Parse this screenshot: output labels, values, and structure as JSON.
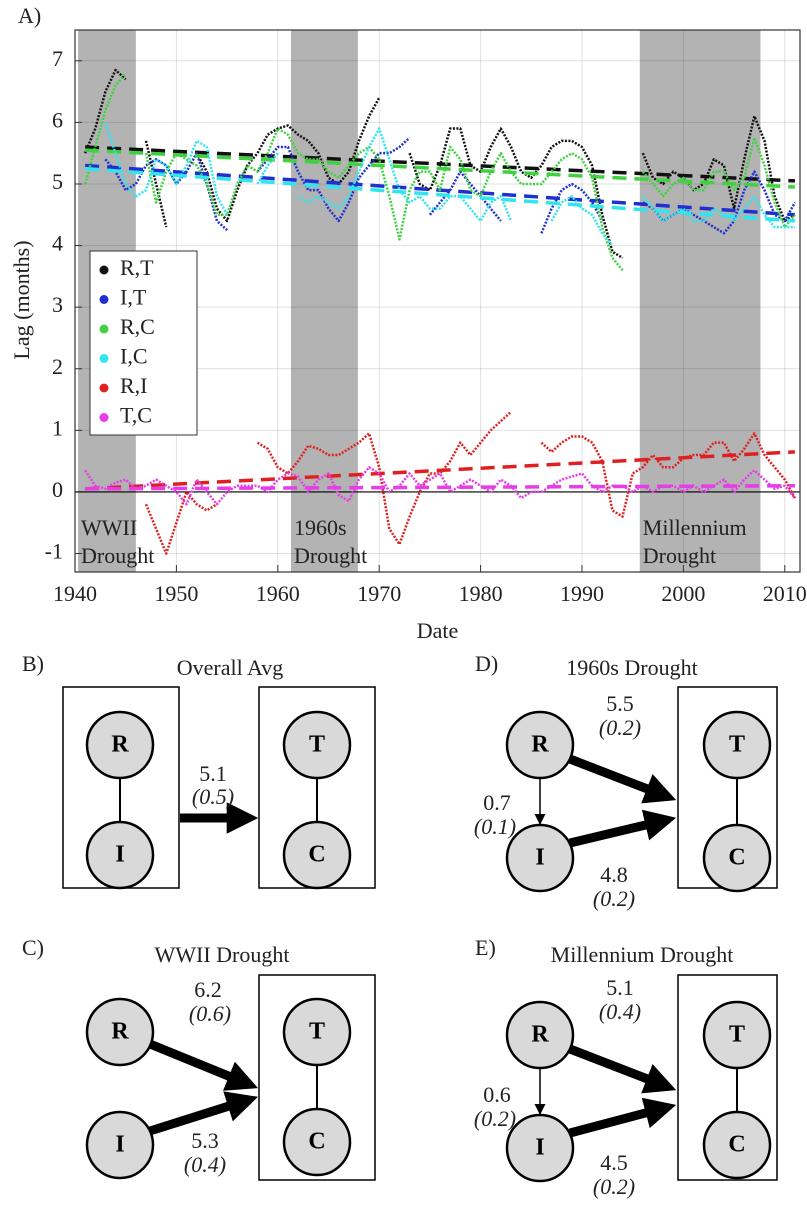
{
  "chart_data": {
    "type": "line",
    "panel_label": "A)",
    "x_label": "Date",
    "y_label": "Lag (months)",
    "xlim": [
      1940,
      2011.5
    ],
    "ylim": [
      -1.3,
      7.5
    ],
    "xticks": [
      1940,
      1950,
      1960,
      1970,
      1980,
      1990,
      2000,
      2010
    ],
    "yticks": [
      -1,
      0,
      1,
      2,
      3,
      4,
      5,
      6,
      7
    ],
    "grid": true,
    "legend": "left",
    "shaded_regions": [
      {
        "x": [
          1940.3,
          1946
        ],
        "label": [
          "WWII",
          "Drought"
        ]
      },
      {
        "x": [
          1961.3,
          1967.9
        ],
        "label": [
          "1960s",
          "Drought"
        ]
      },
      {
        "x": [
          1995.7,
          2007.6
        ],
        "label": [
          "Millennium",
          "Drought"
        ]
      }
    ],
    "x": [
      1941,
      1942,
      1943,
      1944,
      1945,
      1946,
      1947,
      1948,
      1949,
      1950,
      1951,
      1952,
      1953,
      1954,
      1955,
      1956,
      1957,
      1958,
      1959,
      1960,
      1961,
      1962,
      1963,
      1964,
      1965,
      1966,
      1967,
      1968,
      1969,
      1970,
      1971,
      1972,
      1973,
      1974,
      1975,
      1976,
      1977,
      1978,
      1979,
      1980,
      1981,
      1982,
      1983,
      1984,
      1985,
      1986,
      1987,
      1988,
      1989,
      1990,
      1991,
      1992,
      1993,
      1994,
      1995,
      1996,
      1997,
      1998,
      1999,
      2000,
      2001,
      2002,
      2003,
      2004,
      2005,
      2006,
      2007,
      2008,
      2009,
      2010,
      2011
    ],
    "trend_x": [
      1941,
      2011
    ],
    "series": [
      {
        "name": "R,T",
        "color": "#111111",
        "trend": [
          5.6,
          5.05
        ],
        "values": [
          5.5,
          5.9,
          6.5,
          6.85,
          6.7,
          null,
          5.7,
          5.0,
          4.3,
          null,
          null,
          5.5,
          5.2,
          4.6,
          4.4,
          4.9,
          5.3,
          5.5,
          5.8,
          5.9,
          5.95,
          5.8,
          5.7,
          5.5,
          5.1,
          5.0,
          5.2,
          5.7,
          6.1,
          6.4,
          null,
          null,
          5.5,
          5.0,
          4.9,
          5.3,
          5.9,
          5.9,
          5.3,
          5.2,
          5.6,
          5.9,
          5.6,
          5.2,
          5.1,
          5.3,
          5.6,
          5.7,
          5.7,
          5.6,
          5.3,
          4.5,
          3.9,
          3.8,
          null,
          5.5,
          5.1,
          5.0,
          5.2,
          5.1,
          4.9,
          5.0,
          5.4,
          5.3,
          4.6,
          5.4,
          6.1,
          5.7,
          4.8,
          4.4,
          4.5
        ]
      },
      {
        "name": "I,T",
        "color": "#1f2fd0",
        "trend": [
          5.3,
          4.5
        ],
        "values": [
          null,
          null,
          5.4,
          5.2,
          4.9,
          5.0,
          5.3,
          5.4,
          5.3,
          5.0,
          5.2,
          5.5,
          5.0,
          4.4,
          4.25,
          null,
          null,
          5.2,
          5.4,
          5.6,
          5.6,
          5.2,
          4.9,
          4.9,
          4.6,
          4.4,
          4.7,
          5.1,
          5.3,
          5.5,
          5.5,
          5.6,
          5.75,
          null,
          4.5,
          4.7,
          4.9,
          5.2,
          5.0,
          4.8,
          4.6,
          4.4,
          null,
          null,
          null,
          4.2,
          4.6,
          4.9,
          5.0,
          4.9,
          4.7,
          4.4,
          null,
          null,
          null,
          4.7,
          4.6,
          4.4,
          4.5,
          4.6,
          4.5,
          4.4,
          4.3,
          4.2,
          4.4,
          4.9,
          5.2,
          4.9,
          4.5,
          4.4,
          4.7
        ]
      },
      {
        "name": "R,C",
        "color": "#3fd23f",
        "trend": [
          5.55,
          4.95
        ],
        "values": [
          5.0,
          5.6,
          6.2,
          6.6,
          6.8,
          null,
          5.5,
          4.7,
          5.2,
          5.5,
          5.4,
          5.3,
          5.0,
          4.5,
          4.5,
          5.0,
          5.3,
          5.2,
          5.5,
          5.9,
          5.8,
          5.5,
          5.4,
          5.4,
          5.2,
          5.1,
          5.3,
          5.5,
          5.6,
          5.4,
          4.8,
          4.1,
          4.9,
          5.2,
          5.2,
          4.9,
          5.6,
          5.4,
          4.9,
          4.8,
          5.2,
          5.5,
          5.2,
          5.0,
          5.0,
          5.0,
          5.2,
          5.4,
          5.5,
          5.4,
          5.1,
          4.3,
          3.8,
          3.6,
          null,
          5.2,
          5.0,
          4.8,
          5.0,
          5.1,
          4.9,
          4.9,
          5.2,
          5.2,
          4.9,
          5.1,
          5.75,
          5.3,
          4.7,
          4.3,
          4.5
        ]
      },
      {
        "name": "I,C",
        "color": "#2ee6f0",
        "trend": [
          5.25,
          4.4
        ],
        "values": [
          null,
          null,
          6.0,
          5.5,
          5.0,
          4.8,
          4.9,
          5.4,
          5.3,
          5.0,
          5.3,
          5.7,
          5.6,
          4.8,
          4.5,
          null,
          null,
          5.0,
          5.3,
          5.5,
          null,
          4.8,
          4.7,
          4.8,
          4.7,
          4.6,
          4.8,
          5.2,
          5.6,
          5.9,
          5.4,
          4.9,
          4.7,
          4.8,
          4.6,
          4.6,
          4.8,
          4.8,
          4.6,
          4.4,
          4.7,
          4.8,
          4.4,
          null,
          null,
          null,
          4.4,
          4.7,
          4.8,
          4.6,
          4.5,
          4.2,
          4.0,
          null,
          null,
          4.8,
          4.6,
          4.4,
          4.5,
          4.6,
          4.4,
          4.4,
          4.6,
          4.5,
          4.4,
          4.6,
          4.8,
          4.5,
          4.3,
          4.3,
          4.3
        ]
      },
      {
        "name": "R,I",
        "color": "#e02020",
        "trend": [
          0.05,
          0.65
        ],
        "values": [
          null,
          null,
          null,
          null,
          null,
          null,
          -0.2,
          -0.6,
          -1.0,
          -0.5,
          0.0,
          -0.2,
          -0.3,
          -0.2,
          null,
          null,
          null,
          0.8,
          0.7,
          0.4,
          0.3,
          0.5,
          0.75,
          0.7,
          0.6,
          0.6,
          0.7,
          0.8,
          0.95,
          0.4,
          -0.6,
          -0.85,
          -0.4,
          0.0,
          0.3,
          0.3,
          0.5,
          0.8,
          0.6,
          0.8,
          1.0,
          1.15,
          1.3,
          null,
          null,
          0.8,
          0.65,
          0.8,
          0.9,
          0.9,
          0.8,
          0.5,
          -0.3,
          -0.4,
          0.3,
          0.4,
          0.6,
          0.4,
          0.4,
          0.55,
          0.6,
          0.6,
          0.8,
          0.8,
          0.5,
          0.7,
          0.95,
          0.6,
          0.4,
          0.2,
          -0.1
        ]
      },
      {
        "name": "T,C",
        "color": "#e83ce8",
        "trend": [
          0.05,
          0.1
        ],
        "values": [
          0.35,
          0.1,
          0.05,
          0.15,
          0.2,
          0.05,
          0.1,
          0.2,
          0.1,
          0.0,
          -0.2,
          0.2,
          0.0,
          -0.2,
          0.0,
          0.1,
          0.1,
          0.1,
          0.0,
          0.2,
          0.3,
          0.25,
          0.0,
          0.2,
          0.3,
          -0.05,
          -0.15,
          0.2,
          0.4,
          0.3,
          0.0,
          0.1,
          0.3,
          0.1,
          0.2,
          0.3,
          0.0,
          0.1,
          0.2,
          0.1,
          0.0,
          0.2,
          0.1,
          -0.1,
          0.0,
          0.0,
          0.1,
          0.2,
          0.25,
          0.3,
          0.1,
          0.0,
          0.1,
          0.1,
          0.0,
          0.1,
          0.0,
          0.1,
          0.1,
          0.0,
          0.1,
          0.0,
          0.1,
          0.2,
          0.0,
          0.2,
          0.35,
          0.2,
          0.05,
          0.1,
          -0.1
        ]
      }
    ]
  },
  "diagrams": [
    {
      "label": "B)",
      "title": "Overall Avg",
      "nodes": [
        "R",
        "I",
        "T",
        "C"
      ],
      "edges": [
        {
          "lag": 5.1,
          "sd": "(0.5)"
        }
      ]
    },
    {
      "label": "C)",
      "title": "WWII Drought",
      "nodes": [
        "R",
        "I",
        "T",
        "C"
      ],
      "edges": [
        {
          "lag": 6.2,
          "sd": "(0.6)"
        },
        {
          "lag": 5.3,
          "sd": "(0.4)"
        }
      ]
    },
    {
      "label": "D)",
      "title": "1960s Drought",
      "nodes": [
        "R",
        "I",
        "T",
        "C"
      ],
      "edges": [
        {
          "lag": 5.5,
          "sd": "(0.2)"
        },
        {
          "lag": 0.7,
          "sd": "(0.1)"
        },
        {
          "lag": 4.8,
          "sd": "(0.2)"
        }
      ]
    },
    {
      "label": "E)",
      "title": "Millennium Drought",
      "nodes": [
        "R",
        "I",
        "T",
        "C"
      ],
      "edges": [
        {
          "lag": 5.1,
          "sd": "(0.4)"
        },
        {
          "lag": 0.6,
          "sd": "(0.2)"
        },
        {
          "lag": 4.5,
          "sd": "(0.2)"
        }
      ]
    }
  ]
}
